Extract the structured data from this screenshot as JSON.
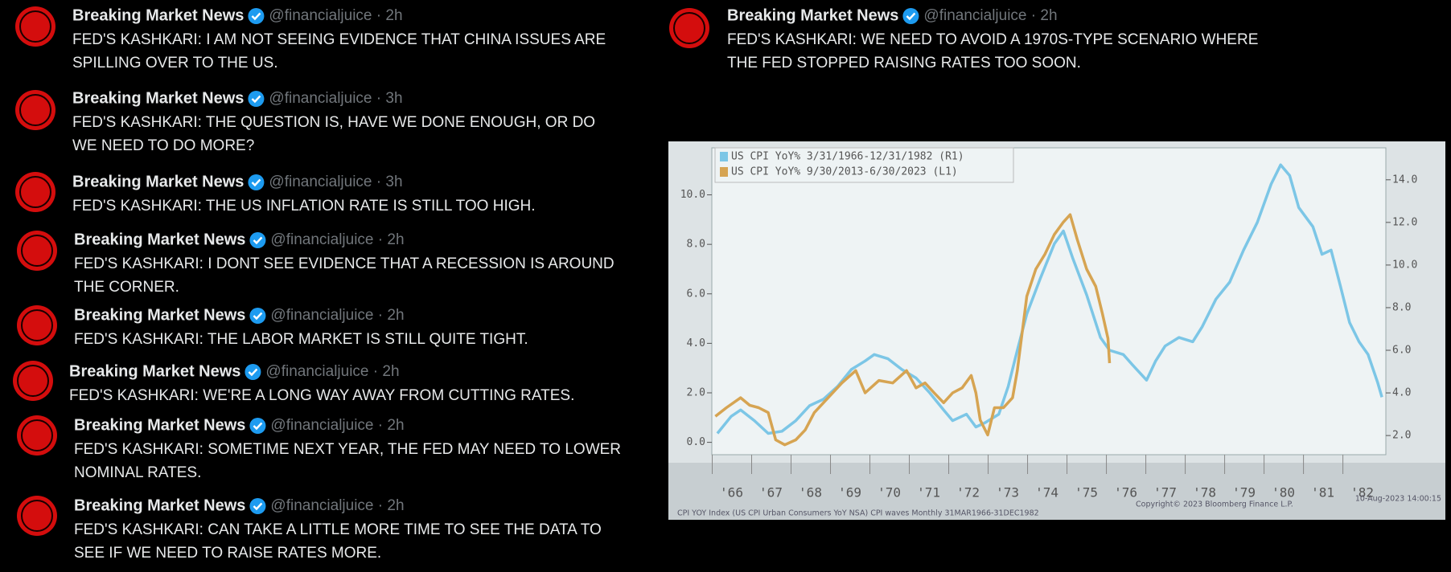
{
  "tweets": [
    {
      "name": "Breaking Market News",
      "meta": "@financialjuice · 2h",
      "text": [
        "FED'S KASHKARI: I AM NOT SEEING EVIDENCE THAT CHINA ISSUES ARE",
        "SPILLING OVER TO THE US."
      ]
    },
    {
      "name": "Breaking Market News",
      "meta": "@financialjuice · 3h",
      "text": [
        "FED'S KASHKARI: THE QUESTION IS, HAVE WE DONE ENOUGH, OR DO",
        "WE NEED TO DO MORE?"
      ]
    },
    {
      "name": "Breaking Market News",
      "meta": "@financialjuice · 3h",
      "text": [
        "FED'S KASHKARI: THE US INFLATION RATE IS STILL TOO HIGH."
      ]
    },
    {
      "name": "Breaking Market News",
      "meta": "@financialjuice · 2h",
      "text": [
        "FED'S KASHKARI: I DONT SEE EVIDENCE THAT A RECESSION IS AROUND",
        "THE CORNER."
      ]
    },
    {
      "name": "Breaking Market News",
      "meta": "@financialjuice · 2h",
      "text": [
        "FED'S KASHKARI: THE LABOR MARKET IS STILL QUITE TIGHT."
      ]
    },
    {
      "name": "Breaking Market News",
      "meta": "@financialjuice · 2h",
      "text": [
        "FED'S KASHKARI: WE'RE A LONG WAY AWAY FROM CUTTING RATES."
      ]
    },
    {
      "name": "Breaking Market News",
      "meta": "@financialjuice · 2h",
      "text": [
        "FED'S KASHKARI: SOMETIME NEXT YEAR, THE FED MAY NEED TO LOWER",
        "NOMINAL RATES."
      ]
    },
    {
      "name": "Breaking Market News",
      "meta": "@financialjuice · 2h",
      "text": [
        "FED'S KASHKARI: CAN TAKE A LITTLE MORE TIME TO SEE THE DATA TO",
        "SEE IF WE NEED TO RAISE RATES MORE."
      ]
    },
    {
      "name": "Breaking Market News",
      "meta": "@financialjuice · 2h",
      "text": [
        "FED'S KASHKARI: WE NEED TO AVOID A 1970S-TYPE SCENARIO WHERE",
        "THE FED STOPPED RAISING RATES TOO SOON."
      ]
    }
  ],
  "chart_data": {
    "type": "line",
    "footer": [
      "CPI YOY Index (US CPI Urban Consumers YoY NSA) CPI waves  Monthly 31MAR1966-31DEC1982",
      "Copyright© 2023 Bloomberg Finance L.P.",
      "10-Aug-2023 14:00:15"
    ],
    "xlim": [
      1966,
      1983.1
    ],
    "xticks": [
      {
        "value": 1966.5,
        "label": "'66"
      },
      {
        "value": 1967.5,
        "label": "'67"
      },
      {
        "value": 1968.5,
        "label": "'68"
      },
      {
        "value": 1969.5,
        "label": "'69"
      },
      {
        "value": 1970.5,
        "label": "'70"
      },
      {
        "value": 1971.5,
        "label": "'71"
      },
      {
        "value": 1972.5,
        "label": "'72"
      },
      {
        "value": 1973.5,
        "label": "'73"
      },
      {
        "value": 1974.5,
        "label": "'74"
      },
      {
        "value": 1975.5,
        "label": "'75"
      },
      {
        "value": 1976.5,
        "label": "'76"
      },
      {
        "value": 1977.5,
        "label": "'77"
      },
      {
        "value": 1978.5,
        "label": "'78"
      },
      {
        "value": 1979.5,
        "label": "'79"
      },
      {
        "value": 1980.5,
        "label": "'80"
      },
      {
        "value": 1981.5,
        "label": "'81"
      },
      {
        "value": 1982.5,
        "label": "'82"
      }
    ],
    "ylim": [
      -0.5,
      11.9
    ],
    "yticks": [
      {
        "value": 0,
        "label": "0.0"
      },
      {
        "value": 2,
        "label": "2.0"
      },
      {
        "value": 4,
        "label": "4.0"
      },
      {
        "value": 6,
        "label": "6.0"
      },
      {
        "value": 8,
        "label": "8.0"
      },
      {
        "value": 10,
        "label": "10.0"
      }
    ],
    "y2lim": [
      1.1,
      15.5
    ],
    "y2ticks": [
      {
        "value": 2,
        "label": "2.0"
      },
      {
        "value": 4,
        "label": "4.0"
      },
      {
        "value": 6,
        "label": "6.0"
      },
      {
        "value": 8,
        "label": "8.0"
      },
      {
        "value": 10,
        "label": "10.0"
      },
      {
        "value": 12,
        "label": "12.0"
      },
      {
        "value": 14,
        "label": "14.0"
      }
    ],
    "series": [
      {
        "name": "US CPI YoY% 3/31/1966-12/31/1982 (R1)",
        "color": "#7cc6e6",
        "axis": "y2",
        "x": [
          1966.14,
          1966.49,
          1966.73,
          1967.08,
          1967.43,
          1967.78,
          1968.13,
          1968.48,
          1968.83,
          1969.19,
          1969.54,
          1969.89,
          1970.12,
          1970.47,
          1970.82,
          1971.18,
          1971.53,
          1971.88,
          1972.11,
          1972.46,
          1972.7,
          1972.93,
          1973.28,
          1973.52,
          1973.75,
          1973.99,
          1974.34,
          1974.69,
          1974.92,
          1975.16,
          1975.51,
          1975.86,
          1976.09,
          1976.44,
          1976.68,
          1977.03,
          1977.26,
          1977.5,
          1977.85,
          1978.2,
          1978.44,
          1978.79,
          1979.14,
          1979.49,
          1979.84,
          1980.19,
          1980.43,
          1980.66,
          1980.89,
          1981.25,
          1981.48,
          1981.71,
          1981.95,
          1982.18,
          1982.42,
          1982.65,
          1982.89,
          1983.0
        ],
        "values": [
          2.1,
          2.9,
          3.2,
          2.7,
          2.1,
          2.2,
          2.7,
          3.4,
          3.7,
          4.3,
          5.1,
          5.5,
          5.8,
          5.6,
          5.1,
          4.7,
          4.0,
          3.2,
          2.7,
          3.0,
          2.4,
          2.6,
          3.0,
          4.3,
          6.0,
          7.7,
          9.4,
          11.0,
          11.6,
          10.3,
          8.6,
          6.6,
          6.0,
          5.8,
          5.3,
          4.6,
          5.5,
          6.2,
          6.6,
          6.4,
          7.1,
          8.4,
          9.2,
          10.7,
          12.0,
          13.8,
          14.7,
          14.2,
          12.7,
          11.8,
          10.5,
          10.7,
          9.0,
          7.3,
          6.4,
          5.8,
          4.5,
          3.8
        ]
      },
      {
        "name": "US CPI YoY% 9/30/2013-6/30/2023 (L1)",
        "color": "#d6a452",
        "axis": "y",
        "x": [
          1966.09,
          1966.37,
          1966.73,
          1966.96,
          1967.19,
          1967.43,
          1967.62,
          1967.85,
          1968.13,
          1968.37,
          1968.6,
          1968.95,
          1969.3,
          1969.65,
          1969.89,
          1970.24,
          1970.59,
          1970.94,
          1971.18,
          1971.41,
          1971.64,
          1971.88,
          1972.11,
          1972.35,
          1972.58,
          1972.7,
          1972.81,
          1973.0,
          1973.17,
          1973.4,
          1973.63,
          1973.75,
          1973.99,
          1974.22,
          1974.45,
          1974.69,
          1974.92,
          1975.09,
          1975.27,
          1975.51,
          1975.74,
          1975.91,
          1976.05,
          1976.09
        ],
        "values": [
          1.05,
          1.4,
          1.8,
          1.5,
          1.4,
          1.2,
          0.1,
          -0.1,
          0.1,
          0.5,
          1.2,
          1.8,
          2.4,
          2.9,
          2.0,
          2.5,
          2.4,
          2.9,
          2.2,
          2.4,
          2.0,
          1.6,
          2.0,
          2.2,
          2.7,
          2.0,
          0.9,
          0.3,
          1.4,
          1.4,
          1.8,
          2.9,
          5.9,
          7.0,
          7.6,
          8.4,
          8.9,
          9.2,
          8.2,
          7.0,
          6.3,
          5.2,
          4.2,
          3.2
        ]
      }
    ]
  }
}
